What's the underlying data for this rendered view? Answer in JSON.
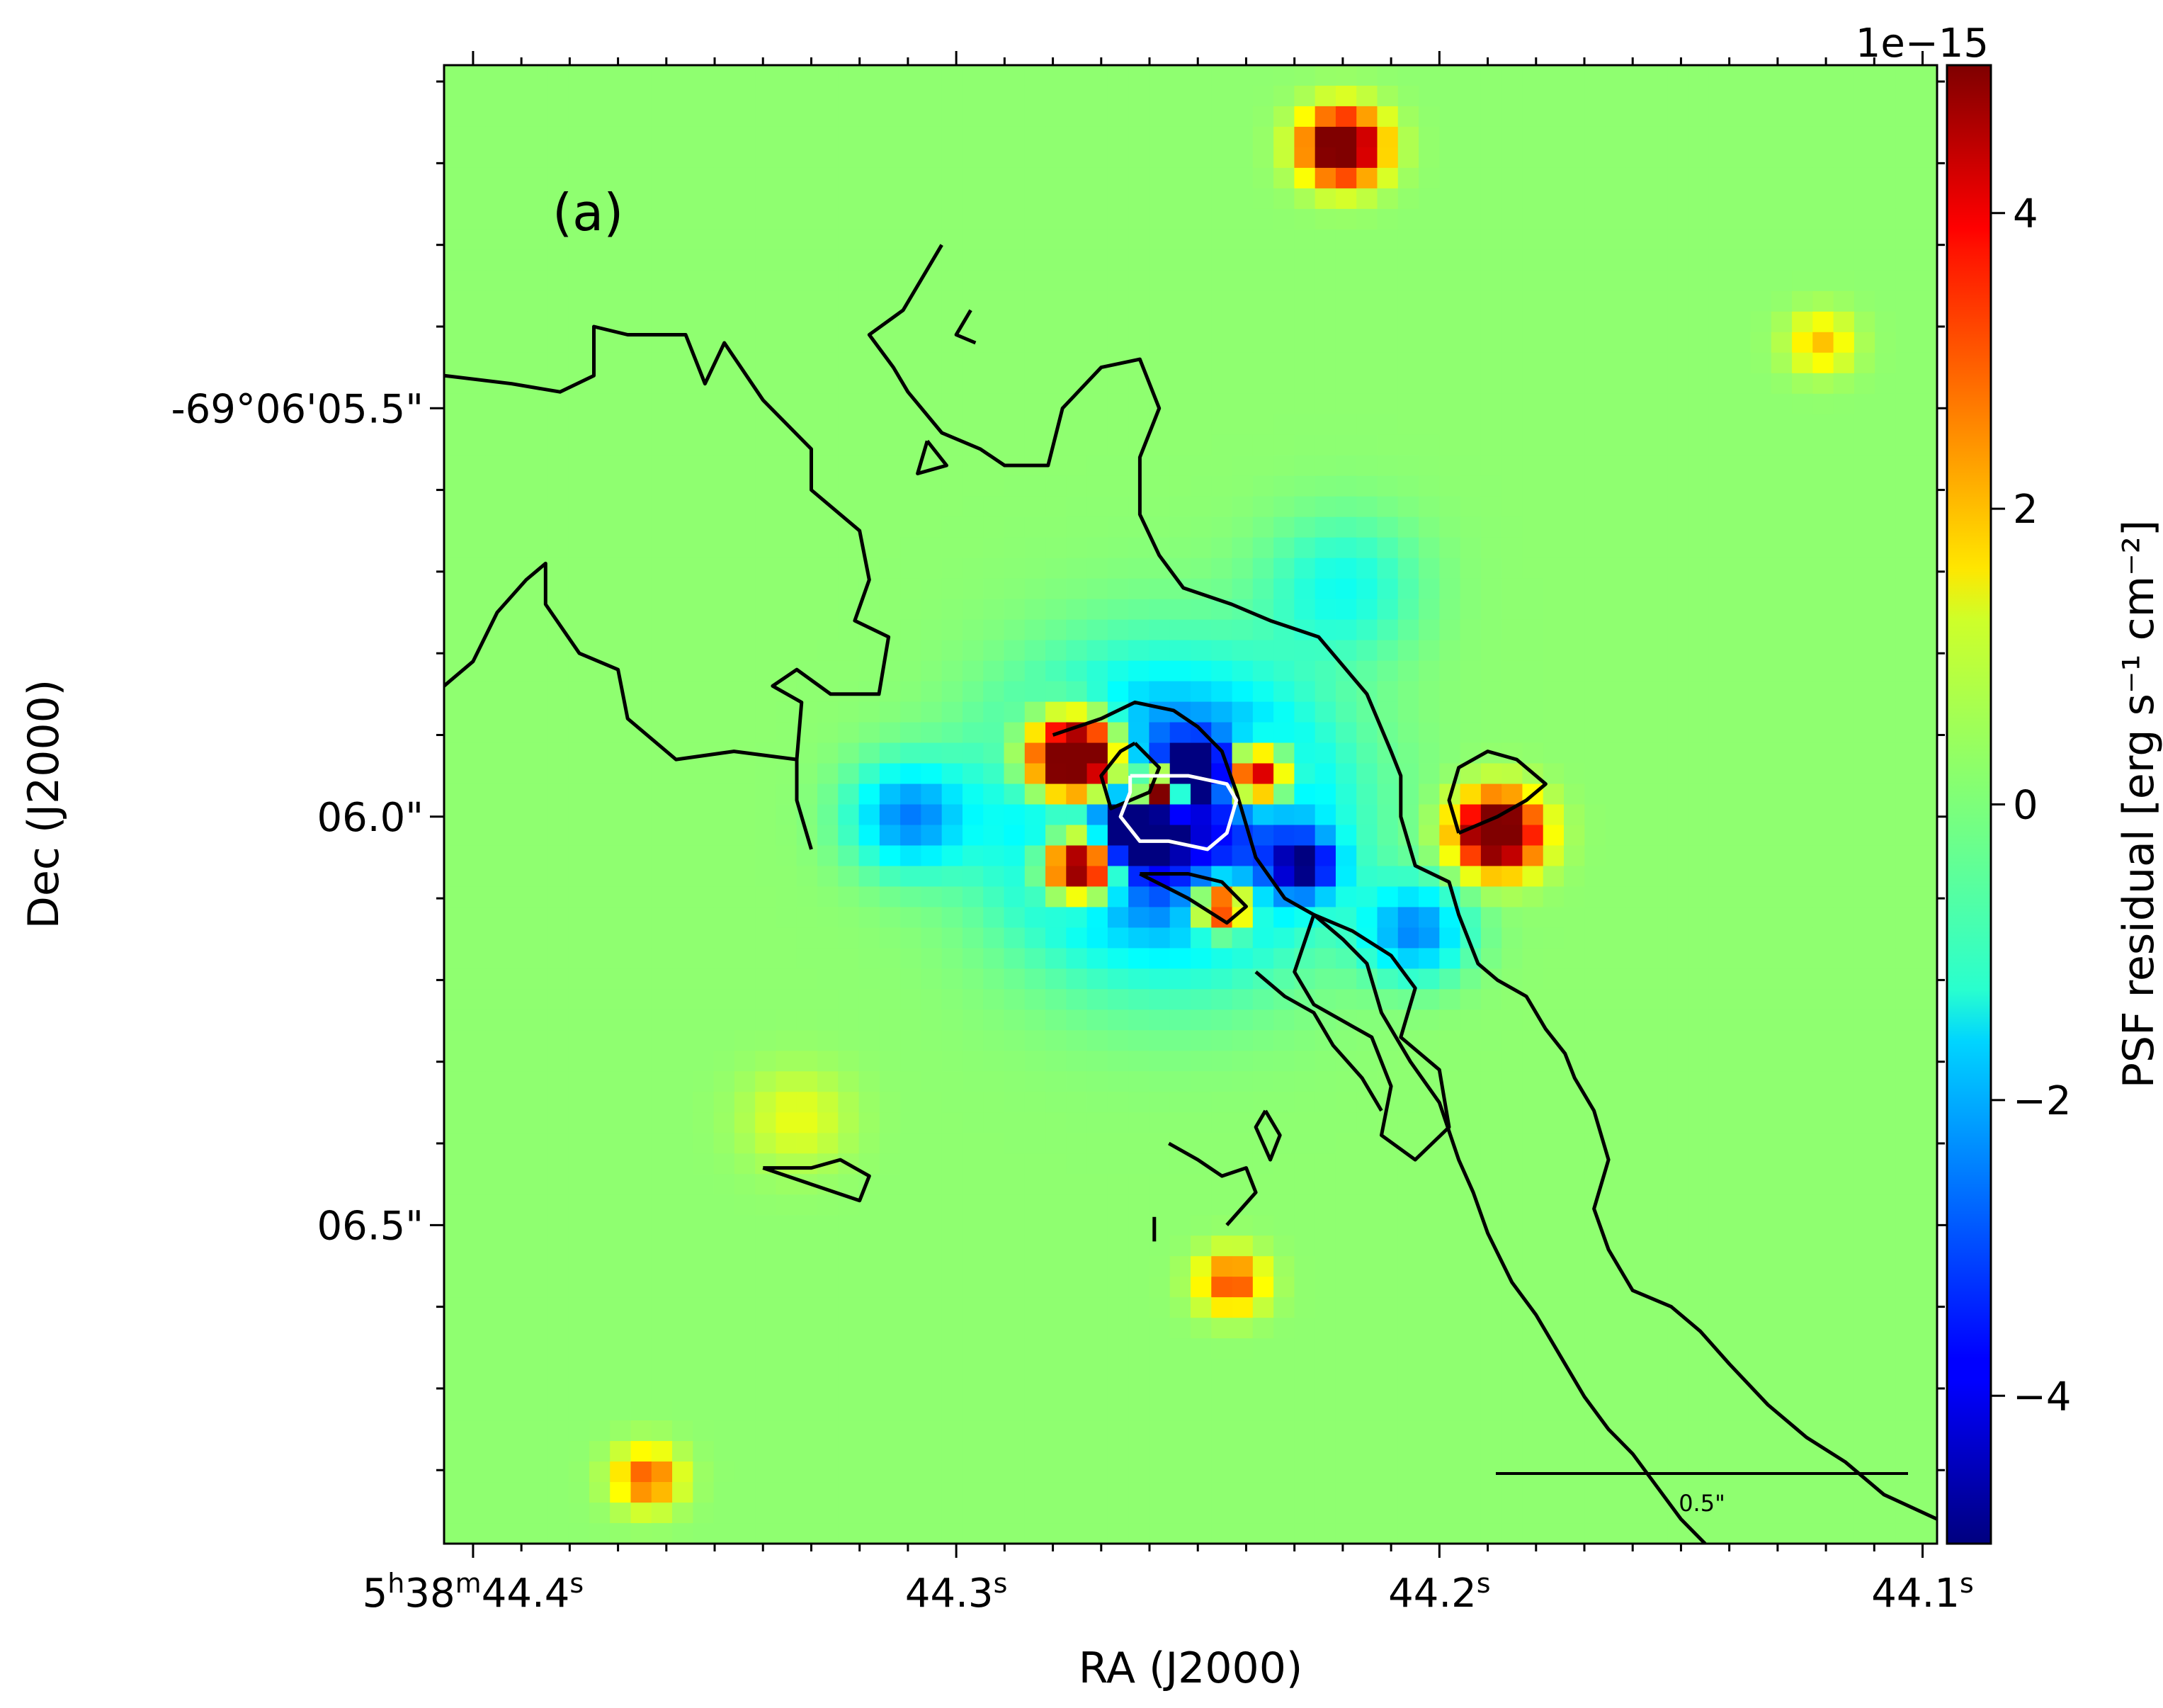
{
  "chart_data": {
    "type": "heatmap",
    "panel_label": "(a)",
    "colormap": "jet",
    "xlabel": "RA (J2000)",
    "ylabel": "Dec (J2000)",
    "x_ticks": [
      {
        "value": 44.4,
        "label_html": "5<tspan dy=\"-20\" font-size=\"38\">h</tspan><tspan dy=\"20\">38</tspan><tspan dy=\"-20\" font-size=\"38\">m</tspan><tspan dy=\"20\">44.4</tspan><tspan dy=\"-20\" font-size=\"38\">s</tspan>"
      },
      {
        "value": 44.3,
        "label_html": "44.3<tspan dy=\"-20\" font-size=\"38\">s</tspan>"
      },
      {
        "value": 44.2,
        "label_html": "44.2<tspan dy=\"-20\" font-size=\"38\">s</tspan>"
      },
      {
        "value": 44.1,
        "label_html": "44.1<tspan dy=\"-20\" font-size=\"38\">s</tspan>"
      }
    ],
    "y_ticks": [
      {
        "value": 5.5,
        "label": "-69°06'05.5\""
      },
      {
        "value": 6.0,
        "label": "06.0\""
      },
      {
        "value": 6.5,
        "label": "06.5\""
      }
    ],
    "xlim": [
      44.406,
      44.097
    ],
    "ylim_arcsec": [
      5.08,
      6.89
    ],
    "colorbar": {
      "label": "PSF residual [erg s⁻¹ cm⁻²]",
      "offset_text": "1e−15",
      "vmin": -5,
      "vmax": 5,
      "ticks": [
        -4,
        -2,
        0,
        2,
        4
      ],
      "tick_labels": [
        "−4",
        "−2",
        "0",
        "2",
        "4"
      ]
    },
    "sources": [
      {
        "ra": 44.256,
        "dec": 6.0,
        "amp": -4.5,
        "sigma": 0.115,
        "note": "negative ring around central star"
      },
      {
        "ra": 44.22,
        "dec": 5.18,
        "amp": 6.5,
        "sigma": 0.03
      },
      {
        "ra": 44.121,
        "dec": 5.42,
        "amp": 1.7,
        "sigma": 0.025
      },
      {
        "ra": 44.188,
        "dec": 6.02,
        "amp": 7.0,
        "sigma": 0.032
      },
      {
        "ra": 44.243,
        "dec": 6.57,
        "amp": 3.0,
        "sigma": 0.025
      },
      {
        "ra": 44.364,
        "dec": 6.81,
        "amp": 2.8,
        "sigma": 0.025
      },
      {
        "ra": 44.333,
        "dec": 6.37,
        "amp": 0.9,
        "sigma": 0.04
      },
      {
        "ra": 44.275,
        "dec": 5.93,
        "amp": 10.0,
        "sigma": 0.035
      },
      {
        "ra": 44.238,
        "dec": 5.95,
        "amp": 7.0,
        "sigma": 0.025
      },
      {
        "ra": 44.274,
        "dec": 6.06,
        "amp": 8.0,
        "sigma": 0.028
      },
      {
        "ra": 44.245,
        "dec": 6.11,
        "amp": 6.0,
        "sigma": 0.022
      },
      {
        "ra": 44.258,
        "dec": 5.97,
        "amp": 10.0,
        "sigma": 0.018
      },
      {
        "ra": 44.262,
        "dec": 6.02,
        "amp": -10.0,
        "sigma": 0.022
      },
      {
        "ra": 44.25,
        "dec": 5.94,
        "amp": -8.0,
        "sigma": 0.018
      },
      {
        "ra": 44.228,
        "dec": 6.06,
        "amp": -4.0,
        "sigma": 0.025
      },
      {
        "ra": 44.205,
        "dec": 6.14,
        "amp": -2.5,
        "sigma": 0.04
      },
      {
        "ra": 44.31,
        "dec": 6.0,
        "amp": -2.5,
        "sigma": 0.045
      },
      {
        "ra": 44.22,
        "dec": 5.72,
        "amp": -1.2,
        "sigma": 0.06
      }
    ],
    "contours": [
      {
        "color": "black",
        "points": [
          [
            44.406,
            5.84
          ],
          [
            44.4,
            5.81
          ],
          [
            44.395,
            5.75
          ],
          [
            44.389,
            5.71
          ],
          [
            44.385,
            5.69
          ],
          [
            44.385,
            5.74
          ],
          [
            44.378,
            5.8
          ],
          [
            44.37,
            5.82
          ],
          [
            44.368,
            5.88
          ],
          [
            44.358,
            5.93
          ],
          [
            44.346,
            5.92
          ],
          [
            44.333,
            5.93
          ],
          [
            44.332,
            5.86
          ],
          [
            44.338,
            5.84
          ],
          [
            44.333,
            5.82
          ],
          [
            44.326,
            5.85
          ],
          [
            44.316,
            5.85
          ],
          [
            44.314,
            5.78
          ],
          [
            44.321,
            5.76
          ],
          [
            44.318,
            5.71
          ],
          [
            44.32,
            5.65
          ],
          [
            44.33,
            5.6
          ],
          [
            44.33,
            5.55
          ],
          [
            44.34,
            5.49
          ],
          [
            44.348,
            5.42
          ],
          [
            44.352,
            5.47
          ],
          [
            44.356,
            5.41
          ],
          [
            44.368,
            5.41
          ],
          [
            44.375,
            5.4
          ],
          [
            44.375,
            5.46
          ],
          [
            44.382,
            5.48
          ],
          [
            44.392,
            5.47
          ],
          [
            44.406,
            5.46
          ]
        ]
      },
      {
        "color": "black",
        "points": [
          [
            44.333,
            5.93
          ],
          [
            44.333,
            5.98
          ],
          [
            44.33,
            6.04
          ]
        ]
      },
      {
        "color": "black",
        "points": [
          [
            44.303,
            5.3
          ],
          [
            44.311,
            5.38
          ],
          [
            44.318,
            5.41
          ],
          [
            44.313,
            5.45
          ],
          [
            44.31,
            5.48
          ],
          [
            44.303,
            5.53
          ],
          [
            44.295,
            5.55
          ],
          [
            44.29,
            5.57
          ],
          [
            44.281,
            5.57
          ],
          [
            44.278,
            5.5
          ],
          [
            44.27,
            5.45
          ],
          [
            44.262,
            5.44
          ],
          [
            44.258,
            5.5
          ],
          [
            44.262,
            5.56
          ],
          [
            44.262,
            5.63
          ],
          [
            44.258,
            5.68
          ],
          [
            44.253,
            5.72
          ],
          [
            44.243,
            5.74
          ],
          [
            44.235,
            5.76
          ],
          [
            44.225,
            5.78
          ],
          [
            44.215,
            5.85
          ],
          [
            44.21,
            5.92
          ],
          [
            44.208,
            5.95
          ],
          [
            44.208,
            6.0
          ],
          [
            44.205,
            6.06
          ],
          [
            44.198,
            6.08
          ],
          [
            44.196,
            6.12
          ],
          [
            44.192,
            6.18
          ],
          [
            44.188,
            6.2
          ],
          [
            44.182,
            6.22
          ],
          [
            44.178,
            6.26
          ],
          [
            44.174,
            6.29
          ],
          [
            44.172,
            6.32
          ],
          [
            44.168,
            6.36
          ],
          [
            44.165,
            6.42
          ],
          [
            44.168,
            6.48
          ],
          [
            44.165,
            6.53
          ],
          [
            44.16,
            6.58
          ],
          [
            44.152,
            6.6
          ],
          [
            44.146,
            6.63
          ],
          [
            44.14,
            6.67
          ],
          [
            44.132,
            6.72
          ],
          [
            44.124,
            6.76
          ],
          [
            44.116,
            6.79
          ],
          [
            44.108,
            6.83
          ],
          [
            44.097,
            6.86
          ]
        ]
      },
      {
        "color": "black",
        "points": [
          [
            44.297,
            5.38
          ],
          [
            44.3,
            5.41
          ],
          [
            44.296,
            5.42
          ]
        ]
      },
      {
        "color": "black",
        "points": [
          [
            44.306,
            5.54
          ],
          [
            44.302,
            5.57
          ],
          [
            44.308,
            5.58
          ],
          [
            44.306,
            5.54
          ]
        ]
      },
      {
        "color": "black",
        "points": [
          [
            44.28,
            5.9
          ],
          [
            44.27,
            5.88
          ],
          [
            44.263,
            5.86
          ],
          [
            44.255,
            5.87
          ],
          [
            44.25,
            5.89
          ],
          [
            44.245,
            5.92
          ],
          [
            44.242,
            5.97
          ],
          [
            44.24,
            6.01
          ],
          [
            44.238,
            6.05
          ],
          [
            44.232,
            6.1
          ],
          [
            44.226,
            6.12
          ],
          [
            44.22,
            6.15
          ],
          [
            44.215,
            6.18
          ],
          [
            44.212,
            6.24
          ],
          [
            44.206,
            6.3
          ],
          [
            44.2,
            6.35
          ],
          [
            44.196,
            6.42
          ],
          [
            44.193,
            6.46
          ],
          [
            44.19,
            6.51
          ],
          [
            44.185,
            6.57
          ],
          [
            44.18,
            6.61
          ],
          [
            44.175,
            6.66
          ],
          [
            44.17,
            6.71
          ],
          [
            44.165,
            6.75
          ],
          [
            44.16,
            6.78
          ],
          [
            44.155,
            6.82
          ],
          [
            44.15,
            6.86
          ],
          [
            44.145,
            6.89
          ]
        ]
      },
      {
        "color": "black",
        "points": [
          [
            44.263,
            5.91
          ],
          [
            44.258,
            5.94
          ],
          [
            44.26,
            5.97
          ],
          [
            44.268,
            5.99
          ],
          [
            44.27,
            5.95
          ],
          [
            44.266,
            5.92
          ],
          [
            44.263,
            5.91
          ]
        ]
      },
      {
        "color": "black",
        "points": [
          [
            44.226,
            6.12
          ],
          [
            44.218,
            6.14
          ],
          [
            44.21,
            6.17
          ],
          [
            44.205,
            6.21
          ],
          [
            44.208,
            6.27
          ],
          [
            44.2,
            6.31
          ],
          [
            44.198,
            6.38
          ],
          [
            44.205,
            6.42
          ],
          [
            44.212,
            6.39
          ],
          [
            44.21,
            6.33
          ],
          [
            44.214,
            6.27
          ],
          [
            44.22,
            6.25
          ],
          [
            44.226,
            6.23
          ],
          [
            44.23,
            6.19
          ],
          [
            44.226,
            6.12
          ]
        ]
      },
      {
        "color": "black",
        "points": [
          [
            44.196,
            6.02
          ],
          [
            44.188,
            6.0
          ],
          [
            44.182,
            5.98
          ],
          [
            44.178,
            5.96
          ],
          [
            44.184,
            5.93
          ],
          [
            44.19,
            5.92
          ],
          [
            44.196,
            5.94
          ],
          [
            44.198,
            5.98
          ],
          [
            44.196,
            6.02
          ]
        ]
      },
      {
        "color": "black",
        "points": [
          [
            44.238,
            6.19
          ],
          [
            44.232,
            6.22
          ],
          [
            44.226,
            6.24
          ],
          [
            44.222,
            6.28
          ],
          [
            44.216,
            6.32
          ],
          [
            44.212,
            6.36
          ]
        ]
      },
      {
        "color": "black",
        "points": [
          [
            44.256,
            6.4
          ],
          [
            44.25,
            6.42
          ],
          [
            44.245,
            6.44
          ],
          [
            44.24,
            6.43
          ],
          [
            44.238,
            6.46
          ],
          [
            44.244,
            6.5
          ]
        ]
      },
      {
        "color": "black",
        "points": [
          [
            44.262,
            6.07
          ],
          [
            44.252,
            6.1
          ],
          [
            44.244,
            6.13
          ],
          [
            44.24,
            6.11
          ],
          [
            44.245,
            6.08
          ],
          [
            44.252,
            6.07
          ],
          [
            44.262,
            6.07
          ]
        ]
      },
      {
        "color": "black",
        "points": [
          [
            44.236,
            6.36
          ],
          [
            44.233,
            6.39
          ],
          [
            44.235,
            6.42
          ],
          [
            44.238,
            6.38
          ],
          [
            44.236,
            6.36
          ]
        ]
      },
      {
        "color": "black",
        "points": [
          [
            44.259,
            6.49
          ],
          [
            44.259,
            6.52
          ]
        ]
      },
      {
        "color": "black",
        "points": [
          [
            44.34,
            6.43
          ],
          [
            44.33,
            6.45
          ],
          [
            44.32,
            6.47
          ],
          [
            44.318,
            6.44
          ],
          [
            44.324,
            6.42
          ],
          [
            44.33,
            6.43
          ],
          [
            44.34,
            6.43
          ]
        ]
      },
      {
        "color": "white",
        "points": [
          [
            44.264,
            5.95
          ],
          [
            44.252,
            5.95
          ],
          [
            44.244,
            5.96
          ],
          [
            44.242,
            5.98
          ],
          [
            44.244,
            6.02
          ],
          [
            44.248,
            6.04
          ],
          [
            44.256,
            6.03
          ],
          [
            44.262,
            6.03
          ],
          [
            44.266,
            6.0
          ],
          [
            44.264,
            5.97
          ],
          [
            44.264,
            5.95
          ]
        ]
      }
    ],
    "scale_bar": {
      "label": "0.5\"",
      "length_arcsec": 0.5
    }
  }
}
